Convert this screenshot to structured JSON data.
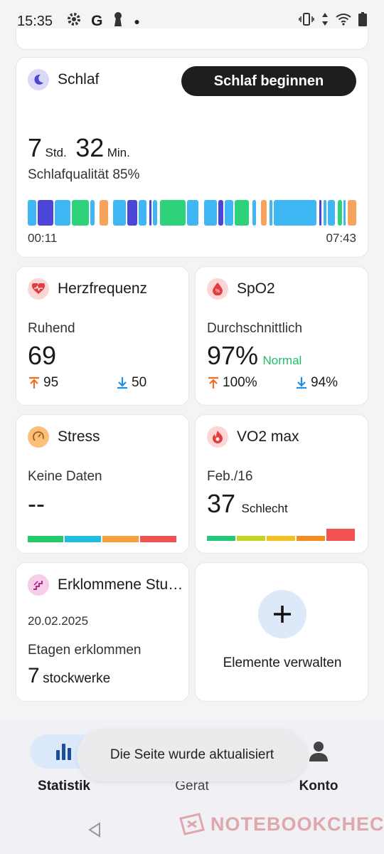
{
  "status_bar": {
    "time": "15:35"
  },
  "sleep": {
    "title": "Schlaf",
    "start_button": "Schlaf beginnen",
    "hours": "7",
    "hours_unit": "Std.",
    "minutes": "32",
    "minutes_unit": "Min.",
    "quality": "Schlafqualität 85%",
    "start_time": "00:11",
    "end_time": "07:43"
  },
  "heart": {
    "title": "Herzfrequenz",
    "label": "Ruhend",
    "value": "69",
    "max": "95",
    "min": "50"
  },
  "spo2": {
    "title": "SpO2",
    "label": "Durchschnittlich",
    "value": "97%",
    "status": "Normal",
    "max": "100%",
    "min": "94%"
  },
  "stress": {
    "title": "Stress",
    "label": "Keine Daten",
    "value": "--"
  },
  "vo2": {
    "title": "VO2 max",
    "date": "Feb./16",
    "value": "37",
    "rating": "Schlecht"
  },
  "stairs": {
    "title": "Erklommene Stu…",
    "date": "20.02.2025",
    "label": "Etagen erklommen",
    "value": "7",
    "unit": "stockwerke"
  },
  "manage": {
    "label": "Elemente verwalten"
  },
  "nav": {
    "items": [
      {
        "label": "Statistik"
      },
      {
        "label": "Gerät"
      },
      {
        "label": "Konto"
      }
    ]
  },
  "toast": "Die Seite wurde aktualisiert",
  "watermark": "NOTEBOOKCHECK",
  "colors": {
    "sleep_light": "#3fb7f5",
    "sleep_deep": "#4b46d6",
    "sleep_rem": "#2dd27a",
    "sleep_awake": "#f7a35c",
    "arrow_up": "#f26b21",
    "arrow_down": "#1e8fe8",
    "normal_green": "#1fbf6a"
  }
}
